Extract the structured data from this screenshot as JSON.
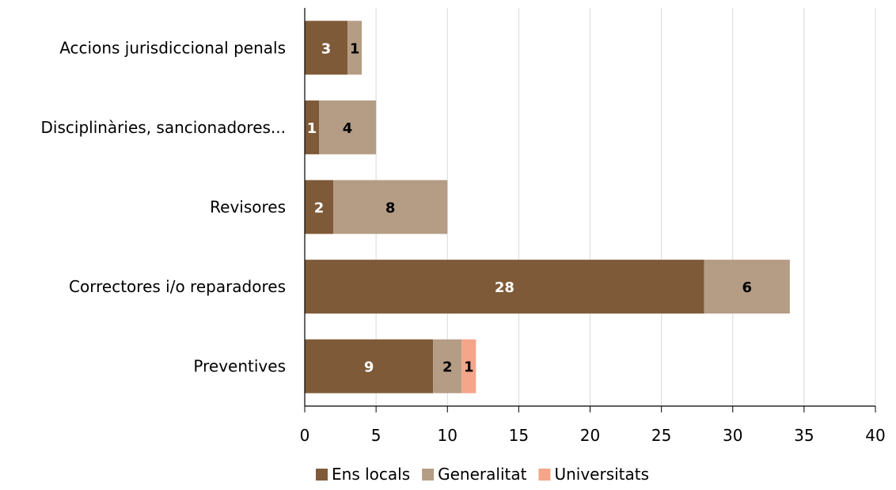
{
  "chart_data": {
    "type": "bar",
    "orientation": "horizontal",
    "stacked": true,
    "categories": [
      "Accions jurisdiccional penals",
      "Disciplinàries, sancionadores...",
      "Revisores",
      "Correctores i/o reparadores",
      "Preventives"
    ],
    "series": [
      {
        "name": "Ens locals",
        "color": "#7f5a38",
        "label_color": "#ffffff",
        "values": [
          3,
          1,
          2,
          28,
          9
        ]
      },
      {
        "name": "Generalitat",
        "color": "#b59c85",
        "label_color": "#000000",
        "values": [
          1,
          4,
          8,
          6,
          2
        ]
      },
      {
        "name": "Universitats",
        "color": "#f4a58a",
        "label_color": "#000000",
        "values": [
          0,
          0,
          0,
          0,
          1
        ]
      }
    ],
    "xlim": [
      0,
      40
    ],
    "x_ticks": [
      "0",
      "5",
      "10",
      "15",
      "20",
      "25",
      "30",
      "35",
      "40"
    ],
    "grid": "vertical",
    "legend": "bottom",
    "title": "",
    "xlabel": "",
    "ylabel": ""
  }
}
